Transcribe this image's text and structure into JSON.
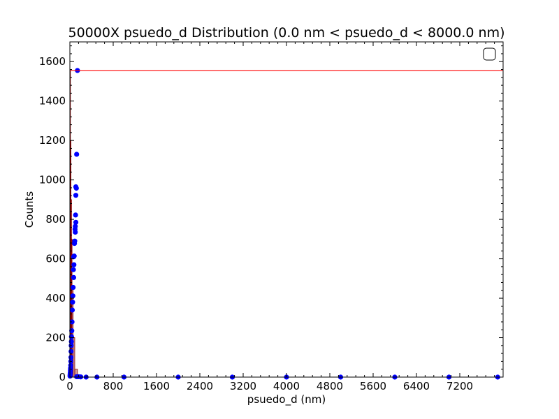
{
  "chart_data": {
    "type": "scatter",
    "title": "50000X psuedo_d Distribution (0.0 nm < psuedo_d < 8000.0  nm)",
    "xlabel": "psuedo_d (nm)",
    "ylabel": "Counts",
    "xlim": [
      0,
      8000
    ],
    "ylim": [
      0,
      1700
    ],
    "xticks": [
      "0",
      "800",
      "1600",
      "2400",
      "3200",
      "4000",
      "4800",
      "5600",
      "6400",
      "7200"
    ],
    "yticks": [
      "0",
      "200",
      "400",
      "600",
      "800",
      "1000",
      "1200",
      "1400",
      "1600"
    ],
    "grid": false,
    "legend": "top-right (empty)",
    "colors": {
      "points": "#0000ff",
      "hline": "#ff0000",
      "hist": "#8b0000"
    },
    "hline": 1555,
    "points": [
      [
        140,
        1555
      ],
      [
        125,
        1130
      ],
      [
        110,
        965
      ],
      [
        120,
        958
      ],
      [
        110,
        922
      ],
      [
        105,
        822
      ],
      [
        110,
        785
      ],
      [
        100,
        765
      ],
      [
        95,
        750
      ],
      [
        100,
        735
      ],
      [
        90,
        690
      ],
      [
        85,
        678
      ],
      [
        80,
        614
      ],
      [
        70,
        610
      ],
      [
        75,
        570
      ],
      [
        65,
        545
      ],
      [
        70,
        505
      ],
      [
        60,
        455
      ],
      [
        55,
        412
      ],
      [
        50,
        380
      ],
      [
        45,
        340
      ],
      [
        40,
        280
      ],
      [
        35,
        235
      ],
      [
        30,
        205
      ],
      [
        28,
        180
      ],
      [
        25,
        160
      ],
      [
        22,
        130
      ],
      [
        20,
        100
      ],
      [
        18,
        80
      ],
      [
        15,
        60
      ],
      [
        12,
        45
      ],
      [
        10,
        35
      ],
      [
        8,
        25
      ],
      [
        6,
        18
      ],
      [
        4,
        10
      ],
      [
        3,
        5
      ],
      [
        125,
        2
      ],
      [
        140,
        2
      ],
      [
        160,
        2
      ],
      [
        200,
        1
      ],
      [
        300,
        0
      ],
      [
        500,
        0
      ],
      [
        1000,
        0
      ],
      [
        2000,
        0
      ],
      [
        3000,
        0
      ],
      [
        4000,
        0
      ],
      [
        5000,
        0
      ],
      [
        6000,
        0
      ],
      [
        7000,
        0
      ],
      [
        7900,
        0
      ]
    ],
    "hist": [
      [
        0,
        10,
        1555
      ],
      [
        10,
        20,
        1200
      ],
      [
        20,
        30,
        900
      ],
      [
        30,
        40,
        700
      ],
      [
        40,
        60,
        450
      ],
      [
        60,
        90,
        200
      ],
      [
        90,
        140,
        40
      ]
    ]
  }
}
